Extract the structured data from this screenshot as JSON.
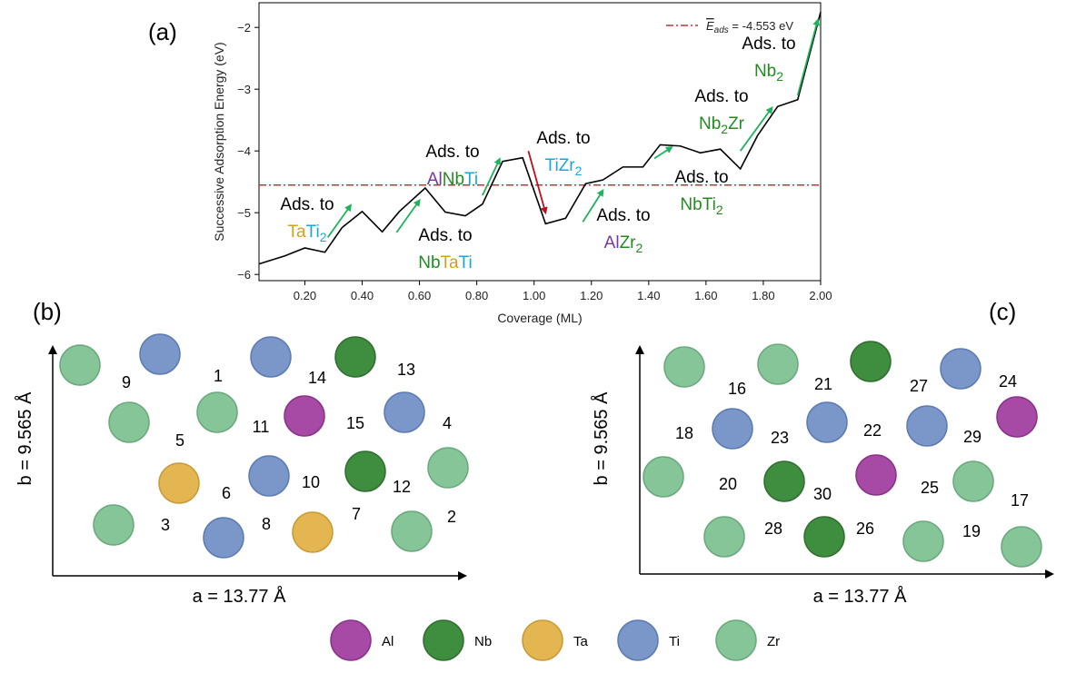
{
  "panels": {
    "a": "(a)",
    "b": "(b)",
    "c": "(c)"
  },
  "chart_data": {
    "type": "line",
    "title": "",
    "xlabel": "Coverage (ML)",
    "ylabel": "Successive Adsorption Energy (eV)",
    "xlim": [
      0.04,
      2.0
    ],
    "ylim": [
      -6.1,
      -1.6
    ],
    "xticks": [
      0.2,
      0.4,
      0.6,
      0.8,
      1.0,
      1.2,
      1.4,
      1.6,
      1.8,
      2.0
    ],
    "xtick_labels": [
      "0.20",
      "0.40",
      "0.60",
      "0.80",
      "1.00",
      "1.20",
      "1.40",
      "1.60",
      "1.80",
      "2.00"
    ],
    "yticks": [
      -6,
      -5,
      -4,
      -3,
      -2
    ],
    "ytick_labels": [
      "−6",
      "−5",
      "−4",
      "−3",
      "−2"
    ],
    "series": [
      {
        "name": "Successive adsorption energy",
        "x": [
          0.04,
          0.13,
          0.2,
          0.27,
          0.33,
          0.4,
          0.47,
          0.53,
          0.62,
          0.69,
          0.76,
          0.82,
          0.89,
          0.96,
          1.04,
          1.11,
          1.18,
          1.24,
          1.31,
          1.38,
          1.44,
          1.51,
          1.58,
          1.65,
          1.72,
          1.78,
          1.85,
          1.92,
          2.0
        ],
        "y": [
          -5.83,
          -5.7,
          -5.57,
          -5.64,
          -5.24,
          -4.98,
          -5.31,
          -4.98,
          -4.6,
          -4.99,
          -5.05,
          -4.86,
          -4.17,
          -4.11,
          -5.18,
          -5.09,
          -4.53,
          -4.47,
          -4.26,
          -4.26,
          -3.9,
          -3.92,
          -4.03,
          -3.97,
          -4.29,
          -3.75,
          -3.28,
          -3.17,
          -1.75
        ]
      }
    ],
    "reference_line": {
      "value": -4.553,
      "legend_symbol": "E",
      "legend_subscript": "ads",
      "legend_text": " = -4.553 eV",
      "color": "#c0343c"
    },
    "annotations": [
      {
        "parts": [
          "Ads. to"
        ],
        "second_line": [
          {
            "text": "Ta",
            "color": "ta"
          },
          {
            "text": "Ti",
            "color": "ti"
          },
          {
            "text": "2",
            "color": "ti",
            "sub": true
          }
        ],
        "arrow_from": [
          0.28,
          -5.4
        ],
        "arrow_to": [
          0.36,
          -4.88
        ],
        "arrow_color": "green"
      },
      {
        "parts": [
          "Ads. to"
        ],
        "second_line": [
          {
            "text": "Nb",
            "color": "nb"
          },
          {
            "text": "Ta",
            "color": "ta"
          },
          {
            "text": "Ti",
            "color": "ti"
          }
        ],
        "arrow_from": [
          0.52,
          -5.32
        ],
        "arrow_to": [
          0.6,
          -4.8
        ],
        "arrow_color": "green"
      },
      {
        "parts": [
          "Ads. to"
        ],
        "second_line": [
          {
            "text": "Al",
            "color": "al"
          },
          {
            "text": "Nb",
            "color": "nb"
          },
          {
            "text": "Ti",
            "color": "ti"
          }
        ],
        "arrow_from": [
          0.82,
          -4.72
        ],
        "arrow_to": [
          0.88,
          -4.13
        ],
        "arrow_color": "green"
      },
      {
        "parts": [
          "Ads. to"
        ],
        "second_line": [
          {
            "text": "Ti",
            "color": "ti"
          },
          {
            "text": "Zr",
            "color": "ti"
          },
          {
            "text": "2",
            "color": "ti",
            "sub": true
          }
        ],
        "arrow_from": [
          0.98,
          -4.0
        ],
        "arrow_to": [
          1.04,
          -5.0
        ],
        "arrow_color": "red"
      },
      {
        "parts": [
          "Ads. to"
        ],
        "second_line": [
          {
            "text": "Al",
            "color": "al"
          },
          {
            "text": "Zr",
            "color": "nb"
          },
          {
            "text": "2",
            "color": "nb",
            "sub": true
          }
        ],
        "arrow_from": [
          1.17,
          -5.15
        ],
        "arrow_to": [
          1.24,
          -4.64
        ],
        "arrow_color": "green"
      },
      {
        "parts": [
          "Ads. to"
        ],
        "second_line": [
          {
            "text": "Nb",
            "color": "nb"
          },
          {
            "text": "Ti",
            "color": "nb"
          },
          {
            "text": "2",
            "color": "nb",
            "sub": true
          }
        ],
        "arrow_from": [
          1.42,
          -4.12
        ],
        "arrow_to": [
          1.48,
          -3.94
        ],
        "arrow_color": "green"
      },
      {
        "parts": [
          "Ads. to"
        ],
        "second_line": [
          {
            "text": "Nb",
            "color": "nb"
          },
          {
            "text": "2",
            "color": "nb",
            "sub": true
          },
          {
            "text": "Zr",
            "color": "nb"
          }
        ],
        "arrow_from": [
          1.72,
          -4.0
        ],
        "arrow_to": [
          1.83,
          -3.3
        ],
        "arrow_color": "green"
      },
      {
        "parts": [
          "Ads. to"
        ],
        "second_line": [
          {
            "text": "Nb",
            "color": "nb"
          },
          {
            "text": "2",
            "color": "nb",
            "sub": true
          }
        ],
        "arrow_from": [
          1.92,
          -3.1
        ],
        "arrow_to": [
          1.99,
          -1.88
        ],
        "arrow_color": "green"
      }
    ]
  },
  "lattice": {
    "a_label": "a = 13.77 Å",
    "b_label": "b = 9.565 Å",
    "panel_b_sites": [
      {
        "element": "Zr",
        "label": ""
      },
      {
        "element": "Ti",
        "label": ""
      },
      {
        "element": "Ti",
        "label": ""
      },
      {
        "element": "Nb",
        "label": ""
      },
      {
        "element": "Zr",
        "label": ""
      },
      {
        "element": "Zr",
        "label": ""
      },
      {
        "element": "Al",
        "label": ""
      },
      {
        "element": "Ti",
        "label": ""
      },
      {
        "element": "Zr",
        "label": ""
      },
      {
        "element": "Ta",
        "label": ""
      },
      {
        "element": "Ti",
        "label": ""
      },
      {
        "element": "Nb",
        "label": ""
      },
      {
        "element": "Zr",
        "label": ""
      },
      {
        "element": "Ti",
        "label": ""
      },
      {
        "element": "Ta",
        "label": ""
      },
      {
        "element": "Zr",
        "label": ""
      }
    ],
    "panel_b_numbers": [
      "9",
      "1",
      "14",
      "13",
      "5",
      "11",
      "15",
      "4",
      "6",
      "10",
      "12",
      "3",
      "8",
      "7",
      "2"
    ],
    "panel_c_sites": [
      {
        "element": "Zr"
      },
      {
        "element": "Zr"
      },
      {
        "element": "Nb"
      },
      {
        "element": "Ti"
      },
      {
        "element": "Ti"
      },
      {
        "element": "Ti"
      },
      {
        "element": "Ti"
      },
      {
        "element": "Al"
      },
      {
        "element": "Zr"
      },
      {
        "element": "Nb"
      },
      {
        "element": "Al"
      },
      {
        "element": "Zr"
      },
      {
        "element": "Zr"
      },
      {
        "element": "Nb"
      },
      {
        "element": "Zr"
      },
      {
        "element": "Zr"
      }
    ],
    "panel_c_numbers": [
      "16",
      "21",
      "27",
      "24",
      "18",
      "23",
      "22",
      "29",
      "20",
      "30",
      "25",
      "17",
      "28",
      "26",
      "19"
    ]
  },
  "legend": [
    {
      "element": "Al",
      "label": "Al"
    },
    {
      "element": "Nb",
      "label": "Nb"
    },
    {
      "element": "Ta",
      "label": "Ta"
    },
    {
      "element": "Ti",
      "label": "Ti"
    },
    {
      "element": "Zr",
      "label": "Zr"
    }
  ],
  "colors": {
    "Al": "#a74aa5",
    "Nb": "#3f8d3f",
    "Ta": "#e3b651",
    "Ti": "#7b97c9",
    "Zr": "#86c598",
    "Al_stroke": "#8a3189",
    "Nb_stroke": "#2f6f2f",
    "Ta_stroke": "#c99a36",
    "Ti_stroke": "#5c7bb2",
    "Zr_stroke": "#6aa97d",
    "text_al": "#7a35a4",
    "text_nb": "#228b22",
    "text_ta": "#d4a017",
    "text_ti": "#16a9d7",
    "arrow_green": "#1db35a",
    "arrow_red": "#b8121c",
    "line": "#000000",
    "ref": "#c0343c"
  }
}
